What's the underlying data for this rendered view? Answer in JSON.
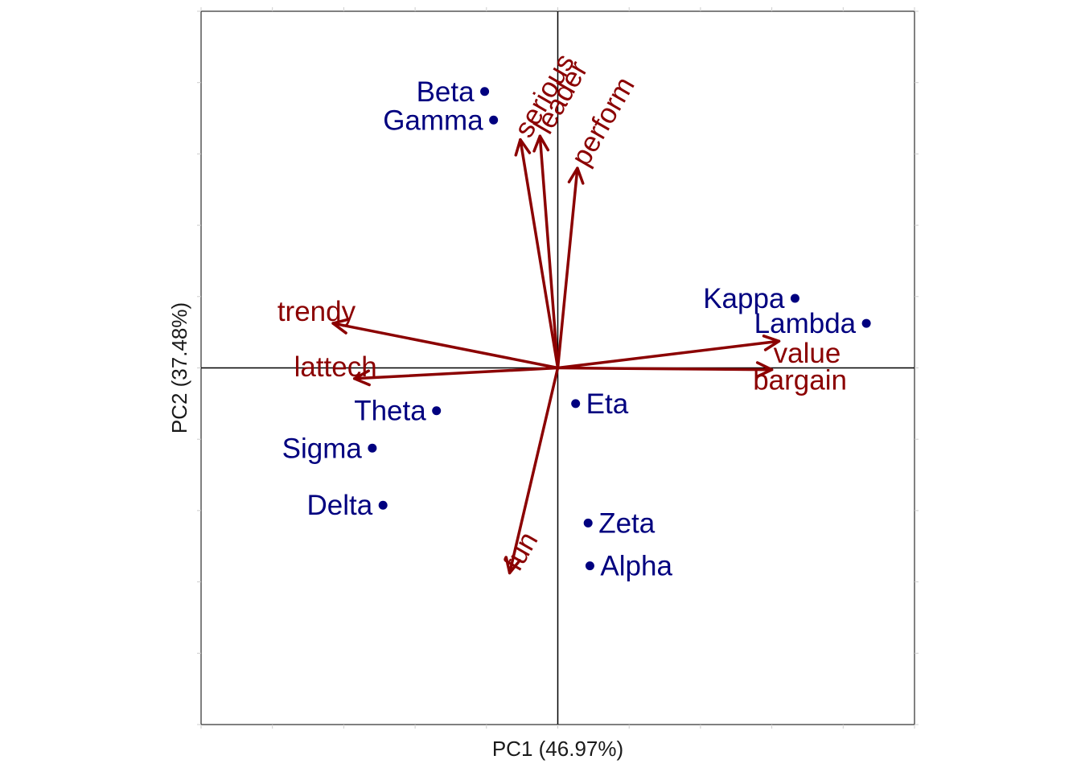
{
  "chart_data": {
    "type": "scatter",
    "subtype": "pca-biplot",
    "xlabel": "PC1 (46.97%)",
    "ylabel": "PC2 (37.48%)",
    "xlim": [
      -1.0,
      1.0
    ],
    "ylim": [
      -1.0,
      1.0
    ],
    "grid": false,
    "reference_lines": {
      "x": 0,
      "y": 0
    },
    "colors": {
      "observations": "#00007f",
      "variables": "#8b0000",
      "axes": "#000000",
      "frame": "#000000",
      "ticks": "#cccccc"
    },
    "observations": [
      {
        "label": "Beta",
        "x": -0.205,
        "y": 0.775,
        "label_side": "left"
      },
      {
        "label": "Gamma",
        "x": -0.18,
        "y": 0.695,
        "label_side": "left"
      },
      {
        "label": "Kappa",
        "x": 0.665,
        "y": 0.195,
        "label_side": "left"
      },
      {
        "label": "Lambda",
        "x": 0.865,
        "y": 0.125,
        "label_side": "left"
      },
      {
        "label": "Eta",
        "x": 0.05,
        "y": -0.1,
        "label_side": "right"
      },
      {
        "label": "Theta",
        "x": -0.34,
        "y": -0.12,
        "label_side": "left"
      },
      {
        "label": "Sigma",
        "x": -0.52,
        "y": -0.225,
        "label_side": "left"
      },
      {
        "label": "Delta",
        "x": -0.49,
        "y": -0.385,
        "label_side": "left"
      },
      {
        "label": "Zeta",
        "x": 0.085,
        "y": -0.435,
        "label_side": "right"
      },
      {
        "label": "Alpha",
        "x": 0.09,
        "y": -0.555,
        "label_side": "right"
      }
    ],
    "variables": [
      {
        "label": "serious",
        "x": -0.105,
        "y": 0.64,
        "label_angle": -60
      },
      {
        "label": "leader",
        "x": -0.05,
        "y": 0.65,
        "label_angle": -60
      },
      {
        "label": "perform",
        "x": 0.055,
        "y": 0.56,
        "label_angle": -60
      },
      {
        "label": "trendy",
        "x": -0.63,
        "y": 0.125,
        "label_angle": 0
      },
      {
        "label": "lattech",
        "x": -0.57,
        "y": -0.03,
        "label_angle": 0
      },
      {
        "label": "value",
        "x": 0.62,
        "y": 0.075,
        "label_angle": 0
      },
      {
        "label": "bargain",
        "x": 0.6,
        "y": -0.005,
        "label_angle": 0
      },
      {
        "label": "fun",
        "x": -0.135,
        "y": -0.575,
        "label_angle": -60
      }
    ]
  }
}
